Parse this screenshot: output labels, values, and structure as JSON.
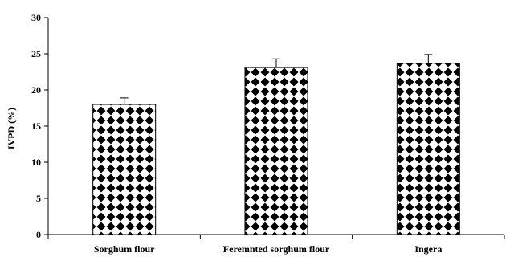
{
  "chart_data": {
    "type": "bar",
    "categories": [
      "Sorghum flour",
      "Feremnted sorghum flour",
      "Ingera"
    ],
    "values": [
      18,
      23.1,
      23.7
    ],
    "error": [
      0.9,
      1.2,
      1.2
    ],
    "title": "",
    "xlabel": "",
    "ylabel": "IVPD (%)",
    "ylim": [
      0,
      30
    ],
    "yticks": [
      0,
      5,
      10,
      15,
      20,
      25,
      30
    ],
    "grid": false,
    "pattern": "black-diamond-checker",
    "colors": {
      "bar_fill": "#000000",
      "bar_background": "#ffffff",
      "axis": "#000000"
    }
  }
}
